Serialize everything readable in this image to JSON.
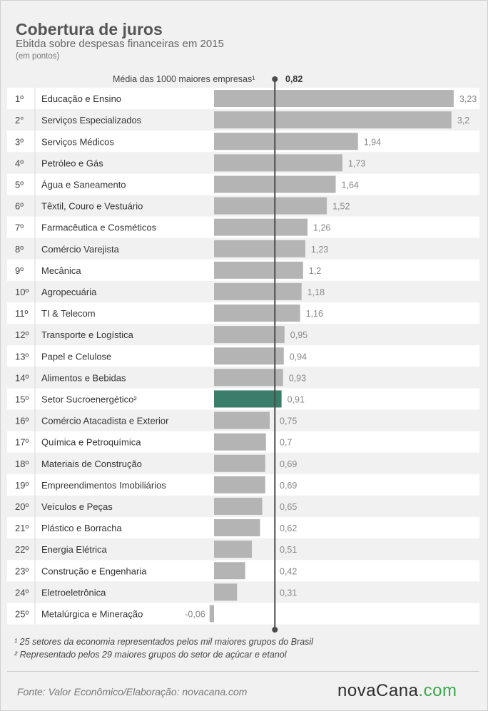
{
  "chart_data": {
    "type": "bar",
    "orientation": "horizontal",
    "title": "Cobertura de juros",
    "subtitle": "Ebitda sobre despesas financeiras em 2015",
    "unit": "(em pontos)",
    "reference_line": {
      "label": "Média das 1000 maiores empresas¹",
      "value_label": "0,82",
      "value": 0.82
    },
    "ranks": [
      "1º",
      "2°",
      "3º",
      "4º",
      "5º",
      "6º",
      "7º",
      "8º",
      "9º",
      "10º",
      "11º",
      "12º",
      "13º",
      "14º",
      "15º",
      "16º",
      "17º",
      "18º",
      "19º",
      "20º",
      "21º",
      "22º",
      "23º",
      "24º",
      "25º"
    ],
    "categories": [
      "Educação e Ensino",
      "Serviços Especializados",
      "Serviços Médicos",
      "Petróleo e Gás",
      "Água e Saneamento",
      "Têxtil, Couro e Vestuário",
      "Farmacêutica e Cosméticos",
      "Comércio Varejista",
      "Mecânica",
      "Agropecuária",
      "TI & Telecom",
      "Transporte e Logística",
      "Papel e Celulose",
      "Alimentos e Bebidas",
      "Setor Sucroenergético²",
      "Comércio Atacadista e Exterior",
      "Química e Petroquímica",
      "Materiais de Construção",
      "Empreendimentos Imobiliários",
      "Veículos e Peças",
      "Plástico e Borracha",
      "Energia Elétrica",
      "Construção e Engenharia",
      "Eletroeletrônica",
      "Metalúrgica e Mineração"
    ],
    "values": [
      3.23,
      3.2,
      1.94,
      1.73,
      1.64,
      1.52,
      1.26,
      1.23,
      1.2,
      1.18,
      1.16,
      0.95,
      0.94,
      0.93,
      0.91,
      0.75,
      0.7,
      0.69,
      0.69,
      0.65,
      0.62,
      0.51,
      0.42,
      0.31,
      -0.06
    ],
    "value_labels": [
      "3,23",
      "3,2",
      "1,94",
      "1,73",
      "1,64",
      "1,52",
      "1,26",
      "1,23",
      "1,2",
      "1,18",
      "1,16",
      "0,95",
      "0,94",
      "0,93",
      "0,91",
      "0,75",
      "0,7",
      "0,69",
      "0,69",
      "0,65",
      "0,62",
      "0,51",
      "0,42",
      "0,31",
      "-0,06"
    ],
    "highlight_index": 14,
    "colors": {
      "bar": "#b4b4b4",
      "highlight": "#3a7d6b",
      "row_alt": "#f1f1f1",
      "row": "#ffffff",
      "line": "#4a4a4a"
    }
  },
  "footnotes": [
    "¹ 25 setores da economia representados pelos mil maiores grupos do Brasil",
    "² Representado pelos 29 maiores grupos do setor de açúcar e etanol"
  ],
  "source": "Fonte:  Valor  Econômico/Elaboração: novacana.com",
  "logo": {
    "main": "novaCana",
    "suffix": ".com"
  }
}
